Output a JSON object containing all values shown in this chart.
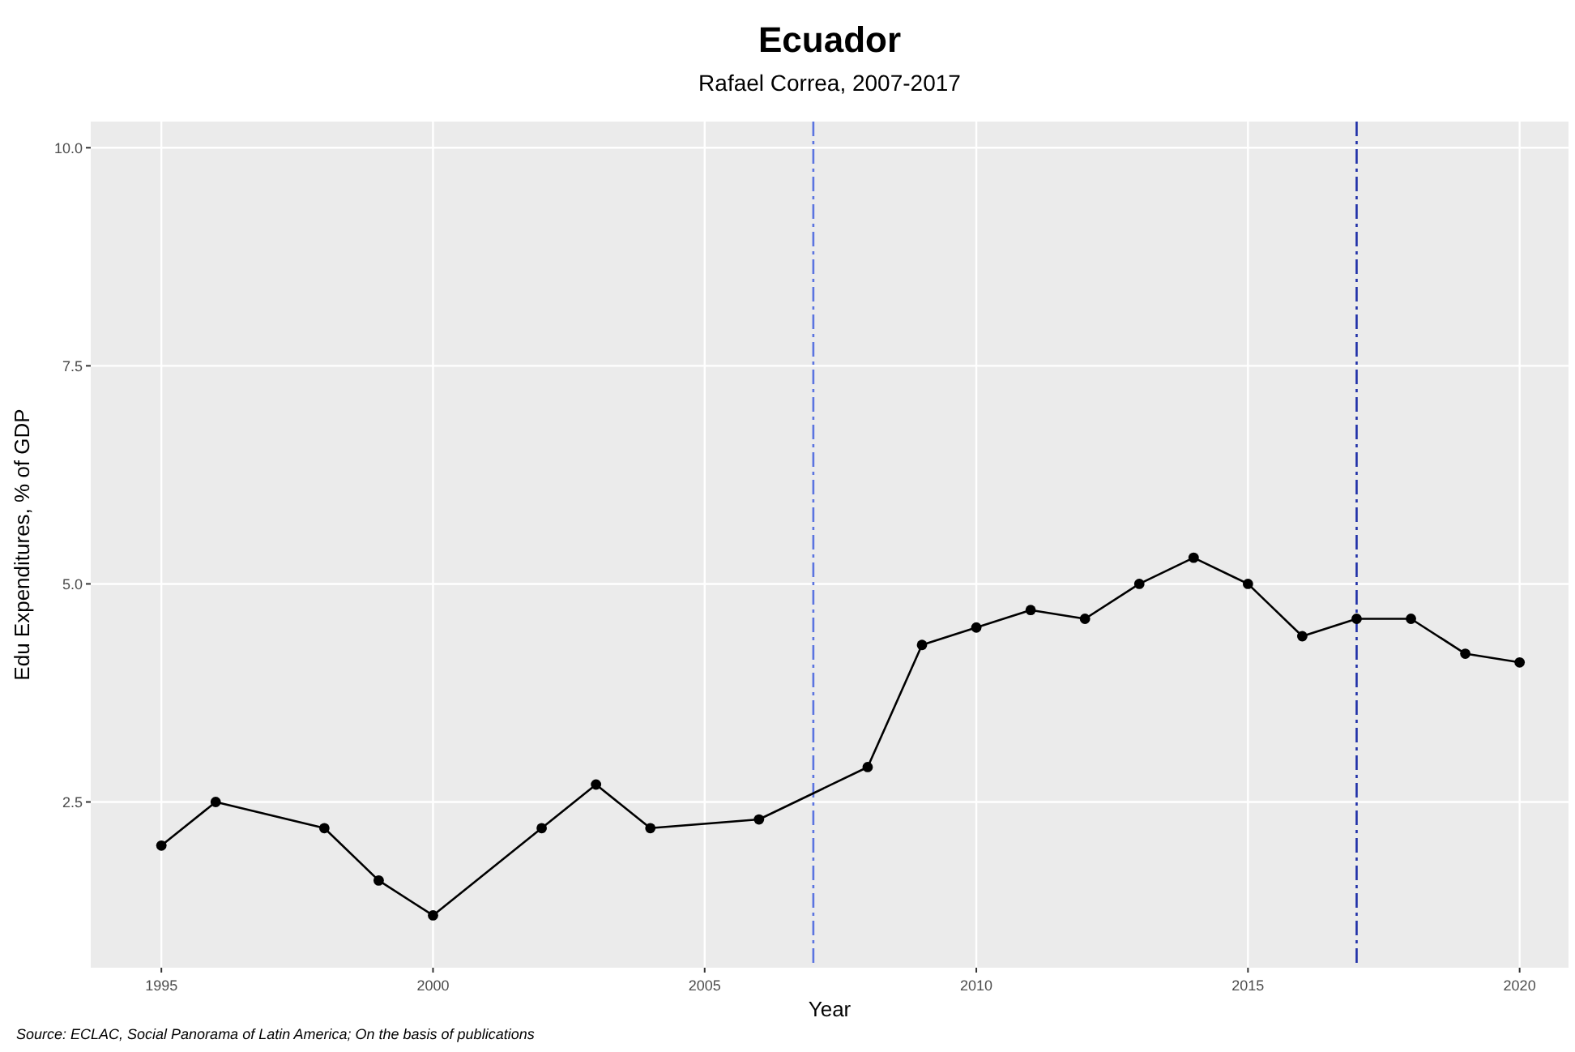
{
  "chart_data": {
    "type": "line",
    "title": "Ecuador",
    "subtitle": "Rafael Correa, 2007-2017",
    "xlabel": "Year",
    "ylabel": "Edu Expenditures, % of GDP",
    "x": [
      1995,
      1996,
      1998,
      1999,
      2000,
      2002,
      2003,
      2004,
      2006,
      2008,
      2009,
      2010,
      2011,
      2012,
      2013,
      2014,
      2015,
      2016,
      2017,
      2018,
      2019,
      2020
    ],
    "series": [
      {
        "color": "#000000",
        "values": [
          2.0,
          2.5,
          2.2,
          1.6,
          1.2,
          2.2,
          2.7,
          2.2,
          2.3,
          2.9,
          4.3,
          4.5,
          4.7,
          4.6,
          5.0,
          5.3,
          5.0,
          4.4,
          4.6,
          4.6,
          4.2,
          4.1
        ]
      }
    ],
    "xlim": [
      1993.7,
      2020.9
    ],
    "xticks": [
      1995,
      2000,
      2005,
      2010,
      2015,
      2020
    ],
    "ylim": [
      0.6,
      10.3
    ],
    "yticks": [
      {
        "value": 2.5,
        "label": "2.5"
      },
      {
        "value": 5,
        "label": "5.0"
      },
      {
        "value": 7.5,
        "label": "7.5"
      },
      {
        "value": 10,
        "label": "10.0"
      }
    ],
    "ref_lines": [
      {
        "axis": "x",
        "value": 2007,
        "color": "#5b74e0",
        "line_style": "dashed"
      },
      {
        "axis": "x",
        "value": 2017,
        "color": "#1f2fa8",
        "line_style": "dashed"
      }
    ],
    "grid": true,
    "marker": "circle",
    "line_style": "solid",
    "annotations": [
      "Source: ECLAC, Social Panorama of Latin America; On the basis of publications"
    ]
  }
}
